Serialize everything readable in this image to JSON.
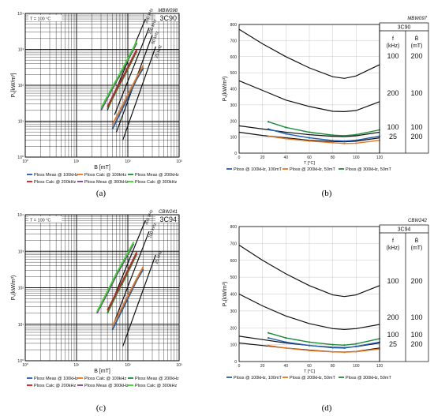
{
  "colors": {
    "blue": "#1f5fb0",
    "orange": "#e87722",
    "green": "#1f8a3a",
    "red": "#c81e1e",
    "purple": "#7a3a9a",
    "lime": "#33dd22",
    "black": "#111111"
  },
  "captions": [
    "(a)",
    "(b)",
    "(c)",
    "(d)"
  ],
  "chart_data": [
    {
      "type": "line",
      "scale": "log-log",
      "panel_code": "MBW098",
      "material": "3C90",
      "temperature_label": "T = 100 °C",
      "xlabel": "B [mT]",
      "ylabel": "Pᵥ[kW/m³]",
      "xlim": [
        1,
        1000
      ],
      "ylim": [
        1,
        10000
      ],
      "x_ticks": [
        {
          "v": 1,
          "label": "10⁰"
        },
        {
          "v": 10,
          "label": "10¹"
        },
        {
          "v": 100,
          "label": "10²"
        },
        {
          "v": 1000,
          "label": "10³"
        }
      ],
      "y_ticks": [
        {
          "v": 1,
          "label": "10⁰"
        },
        {
          "v": 10,
          "label": "10¹"
        },
        {
          "v": 100,
          "label": "10²"
        },
        {
          "v": 1000,
          "label": "10³"
        },
        {
          "v": 10000,
          "label": "10⁴"
        }
      ],
      "grid": true,
      "reference_lines": [
        {
          "label": "200 kHz",
          "x": [
            40,
            220
          ],
          "y": [
            20,
            7000
          ]
        },
        {
          "label": "100 kHz",
          "x": [
            55,
            260
          ],
          "y": [
            15,
            4000
          ]
        },
        {
          "label": "50 kHz",
          "x": [
            60,
            300
          ],
          "y": [
            5,
            2500
          ]
        },
        {
          "label": "25 kHz",
          "x": [
            80,
            350
          ],
          "y": [
            3,
            1200
          ]
        }
      ],
      "series": [
        {
          "name": "Ploss Meas @ 100kHz",
          "color": "blue",
          "x": [
            50,
            70,
            100,
            150,
            200
          ],
          "y": [
            6,
            16,
            45,
            150,
            300
          ]
        },
        {
          "name": "Ploss Calc @ 100kHz",
          "color": "orange",
          "x": [
            50,
            70,
            100,
            150,
            200
          ],
          "y": [
            8,
            20,
            55,
            170,
            360
          ]
        },
        {
          "name": "Ploss Meas @ 200kHz",
          "color": "green",
          "x": [
            40,
            60,
            80,
            100,
            150
          ],
          "y": [
            22,
            70,
            150,
            280,
            900
          ]
        },
        {
          "name": "Ploss Calc @ 200kHz",
          "color": "red",
          "x": [
            40,
            60,
            80,
            100,
            150
          ],
          "y": [
            25,
            80,
            170,
            320,
            1000
          ]
        },
        {
          "name": "Ploss Meas @ 300kHz",
          "color": "purple",
          "x": [
            30,
            50,
            70,
            100,
            150
          ],
          "y": [
            20,
            80,
            190,
            500,
            1500
          ]
        },
        {
          "name": "Ploss Calc @ 300kHz",
          "color": "lime",
          "x": [
            30,
            50,
            70,
            100,
            150
          ],
          "y": [
            23,
            90,
            210,
            550,
            1700
          ]
        }
      ],
      "legend": "bottom"
    },
    {
      "type": "line",
      "panel_code": "MBW097",
      "material": "3C90",
      "xlabel": "T [°C]",
      "ylabel": "Pᵥ(kW/m³)",
      "xlim": [
        0,
        120
      ],
      "ylim": [
        0,
        800
      ],
      "x_ticks": [
        0,
        20,
        40,
        60,
        80,
        100,
        120
      ],
      "y_ticks": [
        0,
        100,
        200,
        300,
        400,
        500,
        600,
        700,
        800
      ],
      "grid": true,
      "table": {
        "header_f": "f",
        "header_f_unit": "(kHz)",
        "header_b": "B̂",
        "header_b_unit": "(mT)",
        "rows": [
          {
            "f": "100",
            "b": "200"
          },
          {
            "f": "200",
            "b": "100"
          },
          {
            "f": "100",
            "b": "100"
          },
          {
            "f": "25",
            "b": "200"
          }
        ]
      },
      "reference_curves": [
        {
          "x": [
            0,
            20,
            40,
            60,
            80,
            90,
            100,
            120
          ],
          "y": [
            770,
            680,
            600,
            530,
            475,
            465,
            480,
            550
          ]
        },
        {
          "x": [
            0,
            20,
            40,
            60,
            80,
            90,
            100,
            120
          ],
          "y": [
            450,
            390,
            330,
            290,
            260,
            258,
            265,
            320
          ]
        },
        {
          "x": [
            0,
            20,
            40,
            60,
            80,
            90,
            100,
            120
          ],
          "y": [
            170,
            150,
            130,
            115,
            105,
            103,
            108,
            130
          ]
        },
        {
          "x": [
            0,
            20,
            40,
            60,
            80,
            90,
            100,
            120
          ],
          "y": [
            130,
            110,
            95,
            80,
            72,
            70,
            74,
            95
          ]
        }
      ],
      "series": [
        {
          "name": "Ploss @ 100kHz, 100mT",
          "color": "blue",
          "x": [
            25,
            40,
            60,
            80,
            90,
            100,
            120
          ],
          "y": [
            150,
            120,
            95,
            78,
            75,
            80,
            105
          ]
        },
        {
          "name": "Ploss @ 200kHz, 50mT",
          "color": "orange",
          "x": [
            25,
            40,
            60,
            80,
            90,
            100,
            120
          ],
          "y": [
            105,
            90,
            75,
            65,
            60,
            62,
            80
          ]
        },
        {
          "name": "Ploss @ 300kHz, 50mT",
          "color": "green",
          "x": [
            25,
            40,
            60,
            80,
            90,
            100,
            120
          ],
          "y": [
            195,
            160,
            130,
            112,
            108,
            115,
            145
          ]
        }
      ],
      "legend": "bottom"
    },
    {
      "type": "line",
      "scale": "log-log",
      "panel_code": "CBW241",
      "material": "3C94",
      "temperature_label": "T = 100 °C",
      "xlabel": "B [mT]",
      "ylabel": "Pᵥ(kW/m³)",
      "xlim": [
        1,
        1000
      ],
      "ylim": [
        1,
        10000
      ],
      "x_ticks": [
        {
          "v": 1,
          "label": "10⁰"
        },
        {
          "v": 10,
          "label": "10¹"
        },
        {
          "v": 100,
          "label": "10²"
        },
        {
          "v": 1000,
          "label": "10³"
        }
      ],
      "y_ticks": [
        {
          "v": 1,
          "label": "10⁰"
        },
        {
          "v": 10,
          "label": "10¹"
        },
        {
          "v": 100,
          "label": "10²"
        },
        {
          "v": 1000,
          "label": "10³"
        },
        {
          "v": 10000,
          "label": "10⁴"
        }
      ],
      "grid": true,
      "reference_lines": [
        {
          "label": "200 kHz",
          "x": [
            40,
            220
          ],
          "y": [
            20,
            7000
          ]
        },
        {
          "label": "100 kHz",
          "x": [
            55,
            260
          ],
          "y": [
            12,
            3500
          ]
        },
        {
          "label": "25 kHz",
          "x": [
            80,
            350
          ],
          "y": [
            2.5,
            800
          ]
        }
      ],
      "series": [
        {
          "name": "Ploss Meas @ 100kHz",
          "color": "blue",
          "x": [
            50,
            70,
            100,
            150,
            200
          ],
          "y": [
            7,
            18,
            50,
            160,
            320
          ]
        },
        {
          "name": "Ploss Calc @ 100kHz",
          "color": "orange",
          "x": [
            50,
            70,
            100,
            150,
            200
          ],
          "y": [
            9,
            22,
            60,
            180,
            380
          ]
        },
        {
          "name": "Ploss Meas @ 200kHz",
          "color": "green",
          "x": [
            40,
            60,
            80,
            100,
            150
          ],
          "y": [
            20,
            65,
            140,
            260,
            850
          ]
        },
        {
          "name": "Ploss Calc @ 200kHz",
          "color": "red",
          "x": [
            40,
            60,
            80,
            100,
            150
          ],
          "y": [
            24,
            75,
            160,
            300,
            950
          ]
        },
        {
          "name": "Ploss Meas @ 300kHz",
          "color": "purple",
          "x": [
            25,
            40,
            60,
            100,
            130
          ],
          "y": [
            20,
            70,
            220,
            800,
            1600
          ]
        },
        {
          "name": "Ploss Calc @ 300kHz",
          "color": "lime",
          "x": [
            25,
            40,
            60,
            100,
            130
          ],
          "y": [
            22,
            80,
            250,
            900,
            1800
          ]
        }
      ],
      "legend": "bottom"
    },
    {
      "type": "line",
      "panel_code": "CBW242",
      "material": "3C94",
      "xlabel": "T [°C]",
      "ylabel": "Pᵥ(kW/m³)",
      "xlim": [
        0,
        120
      ],
      "ylim": [
        0,
        800
      ],
      "x_ticks": [
        0,
        20,
        40,
        60,
        80,
        100,
        120
      ],
      "y_ticks": [
        0,
        100,
        200,
        300,
        400,
        500,
        600,
        700,
        800
      ],
      "grid": true,
      "table": {
        "header_f": "f",
        "header_f_unit": "(kHz)",
        "header_b": "B̂",
        "header_b_unit": "(mT)",
        "rows": [
          {
            "f": "100",
            "b": "200"
          },
          {
            "f": "200",
            "b": "100"
          },
          {
            "f": "100",
            "b": "100"
          },
          {
            "f": "25",
            "b": "200"
          }
        ]
      },
      "reference_curves": [
        {
          "x": [
            0,
            20,
            40,
            60,
            80,
            90,
            100,
            120
          ],
          "y": [
            690,
            600,
            520,
            450,
            395,
            385,
            395,
            450
          ]
        },
        {
          "x": [
            0,
            20,
            40,
            60,
            80,
            90,
            100,
            120
          ],
          "y": [
            400,
            330,
            270,
            225,
            195,
            190,
            195,
            220
          ]
        },
        {
          "x": [
            0,
            20,
            40,
            60,
            80,
            90,
            100,
            120
          ],
          "y": [
            150,
            130,
            110,
            95,
            85,
            83,
            88,
            110
          ]
        },
        {
          "x": [
            0,
            20,
            40,
            60,
            80,
            90,
            100,
            120
          ],
          "y": [
            110,
            95,
            80,
            68,
            58,
            56,
            60,
            80
          ]
        }
      ],
      "series": [
        {
          "name": "Ploss @ 100kHz, 100mT",
          "color": "blue",
          "x": [
            25,
            40,
            60,
            80,
            90,
            100,
            120
          ],
          "y": [
            140,
            115,
            95,
            82,
            80,
            90,
            115
          ]
        },
        {
          "name": "Ploss @ 200kHz, 50mT",
          "color": "orange",
          "x": [
            25,
            40,
            60,
            80,
            90,
            100,
            120
          ],
          "y": [
            95,
            80,
            65,
            57,
            55,
            58,
            75
          ]
        },
        {
          "name": "Ploss @ 300kHz, 50mT",
          "color": "green",
          "x": [
            25,
            40,
            60,
            80,
            90,
            100,
            120
          ],
          "y": [
            170,
            140,
            115,
            100,
            97,
            105,
            135
          ]
        }
      ],
      "legend": "bottom"
    }
  ]
}
